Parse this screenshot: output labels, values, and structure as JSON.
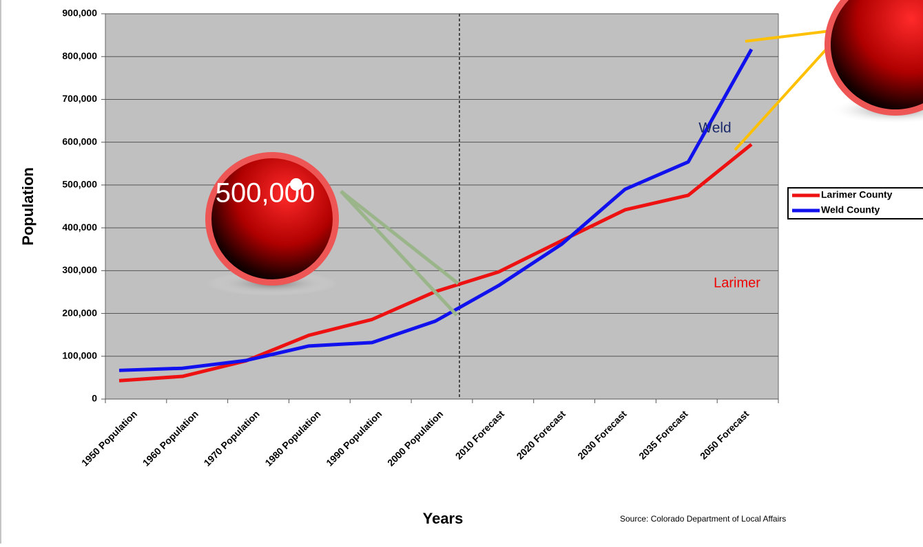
{
  "chart_data": {
    "type": "line",
    "x_label": "Years",
    "y_label": "Population",
    "source": "Source: Colorado Department of Local Affairs",
    "categories": [
      "1950 Population",
      "1960 Population",
      "1970 Population",
      "1980 Population",
      "1990 Population",
      "2000 Population",
      "2010 Forecast",
      "2020 Forecast",
      "2030 Forecast",
      "2035 Forecast",
      "2050 Forecast"
    ],
    "series": [
      {
        "name": "Larimer County",
        "color": "#ee1111",
        "values": [
          43000,
          53000,
          89000,
          149000,
          186000,
          251000,
          297000,
          370000,
          442000,
          476000,
          595000
        ]
      },
      {
        "name": "Weld County",
        "color": "#1111ee",
        "values": [
          67000,
          72000,
          90000,
          124000,
          132000,
          182000,
          265000,
          362000,
          490000,
          554000,
          817000
        ]
      }
    ],
    "ylim": [
      0,
      900000
    ],
    "yticks": [
      0,
      {
        "value": 100000,
        "label": "100,000"
      },
      {
        "value": 200000,
        "label": "200,000"
      },
      {
        "value": 300000,
        "label": "300,000"
      },
      {
        "value": 400000,
        "label": "400,000"
      },
      {
        "value": 500000,
        "label": "500,000"
      },
      {
        "value": 600000,
        "label": "600,000"
      },
      {
        "value": 700000,
        "label": "700,000"
      },
      {
        "value": 800000,
        "label": "800,000"
      },
      {
        "value": {
          "value": 900000,
          "label": "900,000"
        },
        "label": "900,000"
      }
    ],
    "grid": true,
    "legend": "right",
    "annotations": [
      "Weld",
      "Larimer",
      "500,000"
    ]
  }
}
